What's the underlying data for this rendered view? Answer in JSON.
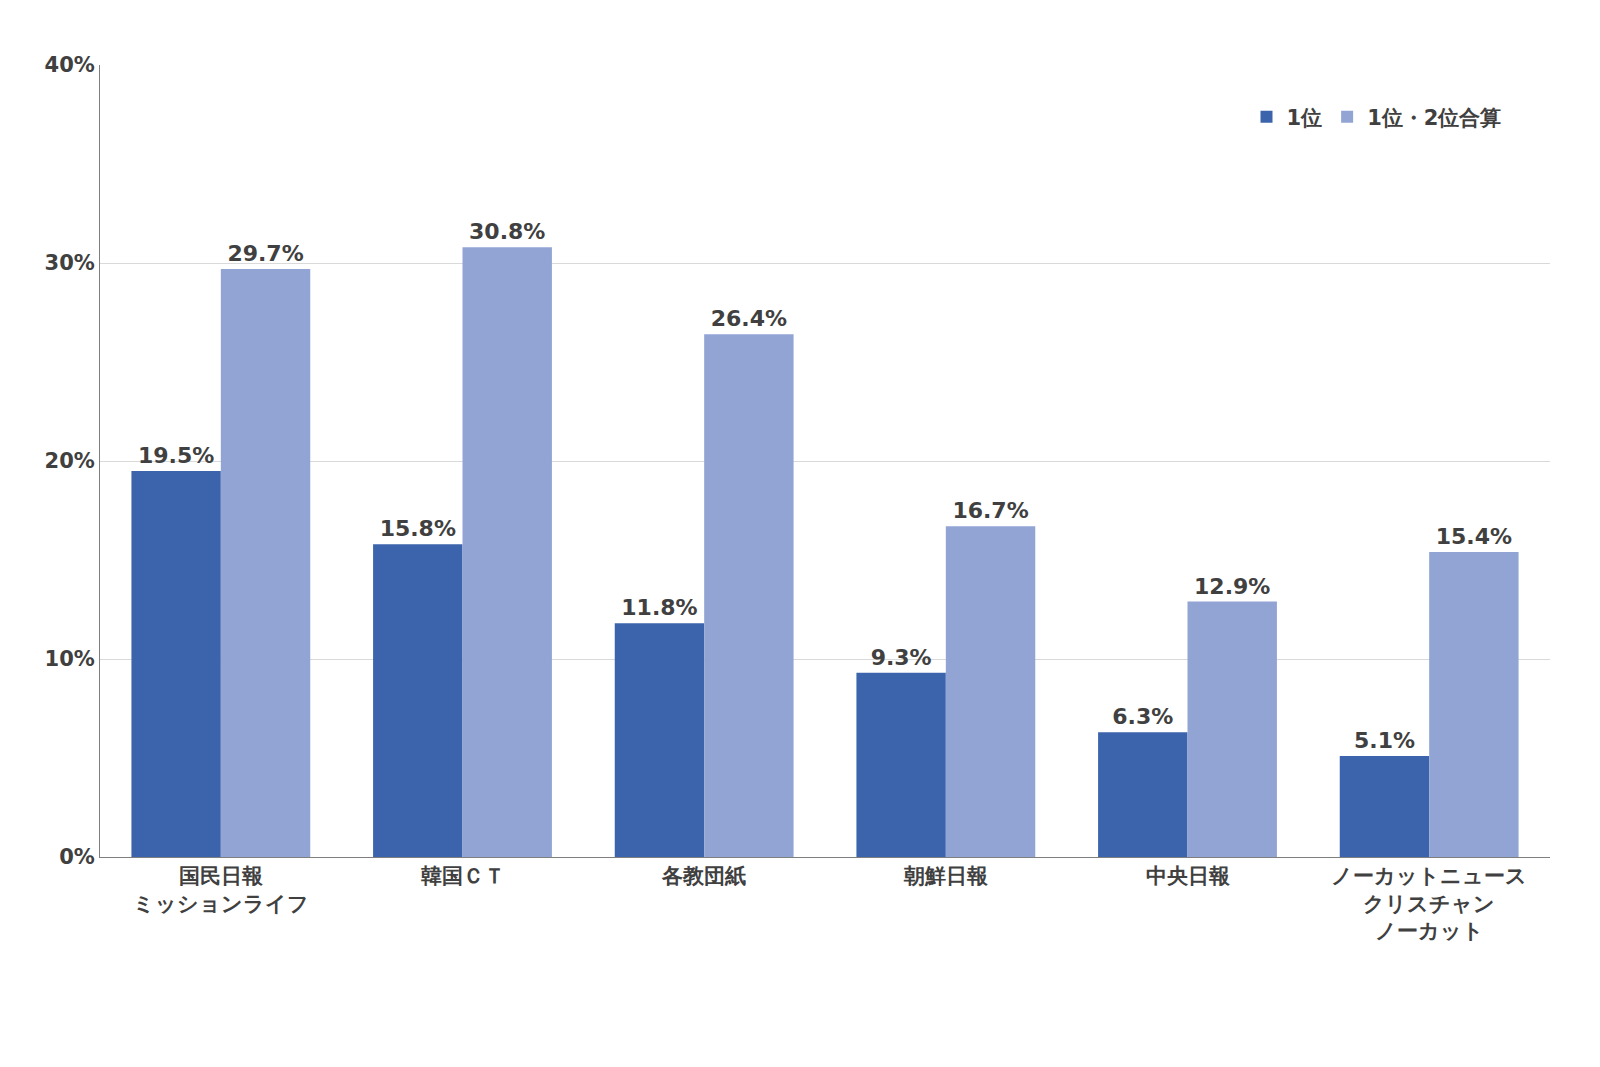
{
  "chart_data": {
    "type": "bar",
    "categories": [
      "国民日報\nミッションライフ",
      "韓国ＣＴ",
      "各教団紙",
      "朝鮮日報",
      "中央日報",
      "ノーカットニュース\nクリスチャン\nノーカット"
    ],
    "series": [
      {
        "name": "1位",
        "color": "#3c64ac",
        "values": [
          19.5,
          15.8,
          11.8,
          9.3,
          6.3,
          5.1
        ],
        "value_labels": [
          "19.5%",
          "15.8%",
          "11.8%",
          "9.3%",
          "6.3%",
          "5.1%"
        ]
      },
      {
        "name": "1位・2位合算",
        "color": "#91a4d4",
        "values": [
          29.7,
          30.8,
          26.4,
          16.7,
          12.9,
          15.4
        ],
        "value_labels": [
          "29.7%",
          "30.8%",
          "26.4%",
          "16.7%",
          "12.9%",
          "15.4%"
        ]
      }
    ],
    "ylim": [
      0,
      40
    ],
    "yticks": [
      {
        "value": 0,
        "label": "0%"
      },
      {
        "value": 10,
        "label": "10%"
      },
      {
        "value": 20,
        "label": "20%"
      },
      {
        "value": 30,
        "label": "30%"
      },
      {
        "value": 40,
        "label": "40%"
      }
    ],
    "grid": true,
    "legend": "top right",
    "data_labels": true
  }
}
